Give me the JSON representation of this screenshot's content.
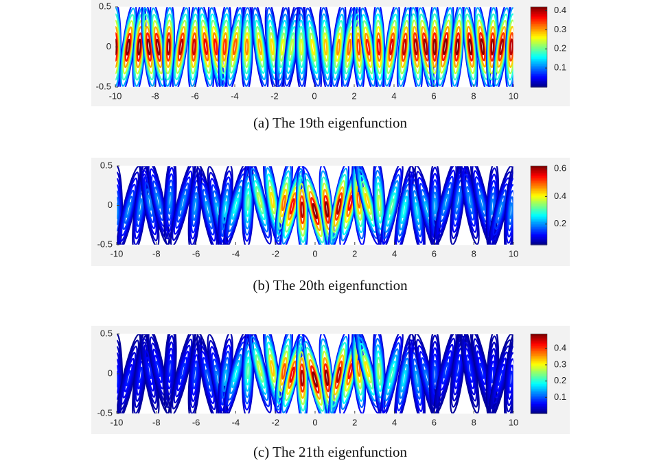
{
  "chart_data": [
    {
      "type": "contour",
      "caption": "(a) The 19th eigenfunction",
      "xlim": [
        -10,
        10
      ],
      "xticks": [
        -10,
        -8,
        -6,
        -4,
        -2,
        0,
        2,
        4,
        6,
        8,
        10
      ],
      "ylim": [
        -0.5,
        0.5
      ],
      "yticks": [
        -0.5,
        0,
        0.5
      ],
      "clim": [
        0,
        0.42
      ],
      "cticks": [
        0.1,
        0.2,
        0.3,
        0.4
      ],
      "colormap": "jet"
    },
    {
      "type": "contour",
      "caption": "(b) The 20th eigenfunction",
      "xlim": [
        -10,
        10
      ],
      "xticks": [
        -10,
        -8,
        -6,
        -4,
        -2,
        0,
        2,
        4,
        6,
        8,
        10
      ],
      "ylim": [
        -0.5,
        0.5
      ],
      "yticks": [
        -0.5,
        0,
        0.5
      ],
      "clim": [
        0.05,
        0.62
      ],
      "cticks": [
        0.2,
        0.4,
        0.6
      ],
      "colormap": "jet"
    },
    {
      "type": "contour",
      "caption": "(c) The 21th eigenfunction",
      "xlim": [
        -10,
        10
      ],
      "xticks": [
        -10,
        -8,
        -6,
        -4,
        -2,
        0,
        2,
        4,
        6,
        8,
        10
      ],
      "ylim": [
        -0.5,
        0.5
      ],
      "yticks": [
        -0.5,
        0,
        0.5
      ],
      "clim": [
        0,
        0.49
      ],
      "cticks": [
        0.1,
        0.2,
        0.3,
        0.4
      ],
      "colormap": "jet"
    }
  ]
}
